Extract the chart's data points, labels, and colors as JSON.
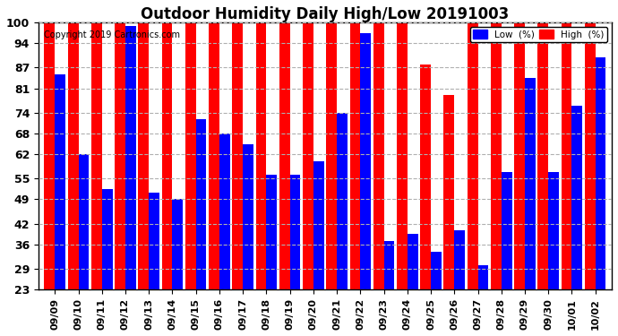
{
  "title": "Outdoor Humidity Daily High/Low 20191003",
  "copyright": "Copyright 2019 Cartronics.com",
  "dates": [
    "09/09",
    "09/10",
    "09/11",
    "09/12",
    "09/13",
    "09/14",
    "09/15",
    "09/16",
    "09/17",
    "09/18",
    "09/19",
    "09/20",
    "09/21",
    "09/22",
    "09/23",
    "09/24",
    "09/25",
    "09/26",
    "09/27",
    "09/28",
    "09/29",
    "09/30",
    "10/01",
    "10/02"
  ],
  "high": [
    100,
    100,
    100,
    100,
    100,
    100,
    100,
    100,
    100,
    100,
    100,
    100,
    100,
    100,
    100,
    100,
    88,
    79,
    100,
    100,
    100,
    100,
    100,
    100
  ],
  "low": [
    85,
    62,
    52,
    99,
    51,
    49,
    72,
    68,
    65,
    56,
    56,
    60,
    74,
    97,
    37,
    39,
    34,
    40,
    30,
    57,
    84,
    57,
    76,
    90
  ],
  "high_color": "#ff0000",
  "low_color": "#0000ff",
  "bg_color": "#ffffff",
  "ylim_min": 23,
  "ylim_max": 100,
  "yticks": [
    23,
    29,
    36,
    42,
    49,
    55,
    62,
    68,
    74,
    81,
    87,
    94,
    100
  ],
  "grid_color": "#b0b0b0",
  "title_fontsize": 12,
  "bar_width": 0.45,
  "legend_low_label": "Low  (%)",
  "legend_high_label": "High  (%)"
}
